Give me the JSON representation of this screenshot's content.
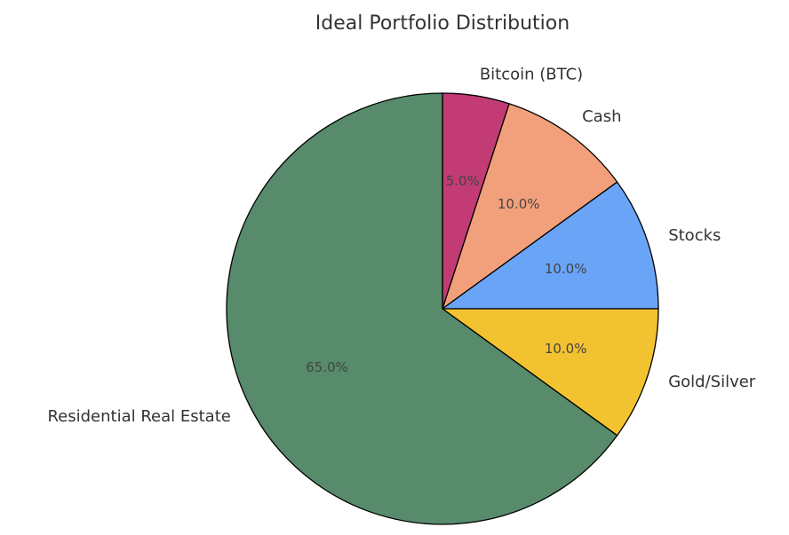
{
  "chart_data": {
    "type": "pie",
    "title": "Ideal Portfolio Distribution",
    "start_angle_deg": 90,
    "direction": "clockwise",
    "slices": [
      {
        "label": "Bitcoin (BTC)",
        "value": 5.0,
        "pct_label": "5.0%",
        "color": "#c23b74"
      },
      {
        "label": "Cash",
        "value": 10.0,
        "pct_label": "10.0%",
        "color": "#f2a07b"
      },
      {
        "label": "Stocks",
        "value": 10.0,
        "pct_label": "10.0%",
        "color": "#6aa4f7"
      },
      {
        "label": "Gold/Silver",
        "value": 10.0,
        "pct_label": "10.0%",
        "color": "#f2c230"
      },
      {
        "label": "Residential Real Estate",
        "value": 65.0,
        "pct_label": "65.0%",
        "color": "#578b6b"
      }
    ]
  }
}
